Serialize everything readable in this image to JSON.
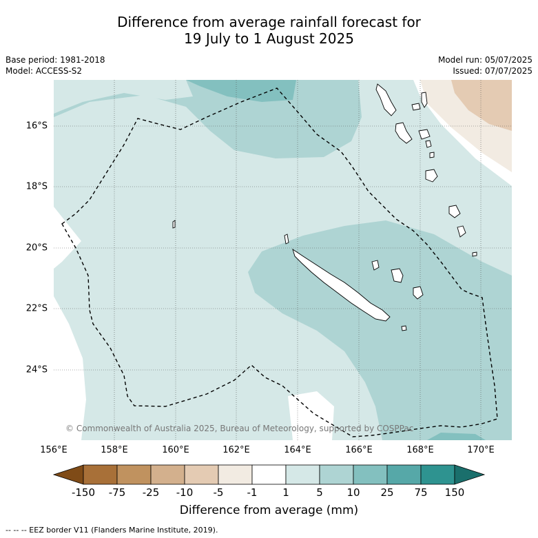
{
  "title_line1": "Difference from average rainfall forecast for",
  "title_line2": "19 July to 1 August 2025",
  "base_period": "Base period: 1981-2018",
  "model": "Model: ACCESS-S2",
  "model_run": "Model run: 05/07/2025",
  "issued": "Issued: 07/07/2025",
  "copyright": "© Commonwealth of Australia 2025, Bureau of Meteorology, supported by COSPPac",
  "lat_labels": [
    "16°S",
    "18°S",
    "20°S",
    "22°S",
    "24°S"
  ],
  "lon_labels": [
    "156°E",
    "158°E",
    "160°E",
    "162°E",
    "164°E",
    "166°E",
    "168°E",
    "170°E"
  ],
  "colorbar": {
    "title": "Difference from average (mm)",
    "tick_labels": [
      "-150",
      "-75",
      "-25",
      "-10",
      "-5",
      "-1",
      "1",
      "5",
      "10",
      "25",
      "75",
      "150"
    ],
    "colors": [
      "#7f4b17",
      "#a87038",
      "#c0925f",
      "#d3b08d",
      "#e4cbb3",
      "#f2ebe2",
      "#ffffff",
      "#d5e8e7",
      "#aed4d3",
      "#83c0bf",
      "#56a8a8",
      "#2e9390",
      "#1a6f6c"
    ]
  },
  "footnote": "--  --  -- EEZ border V11 (Flanders Marine Institute, 2019)."
}
